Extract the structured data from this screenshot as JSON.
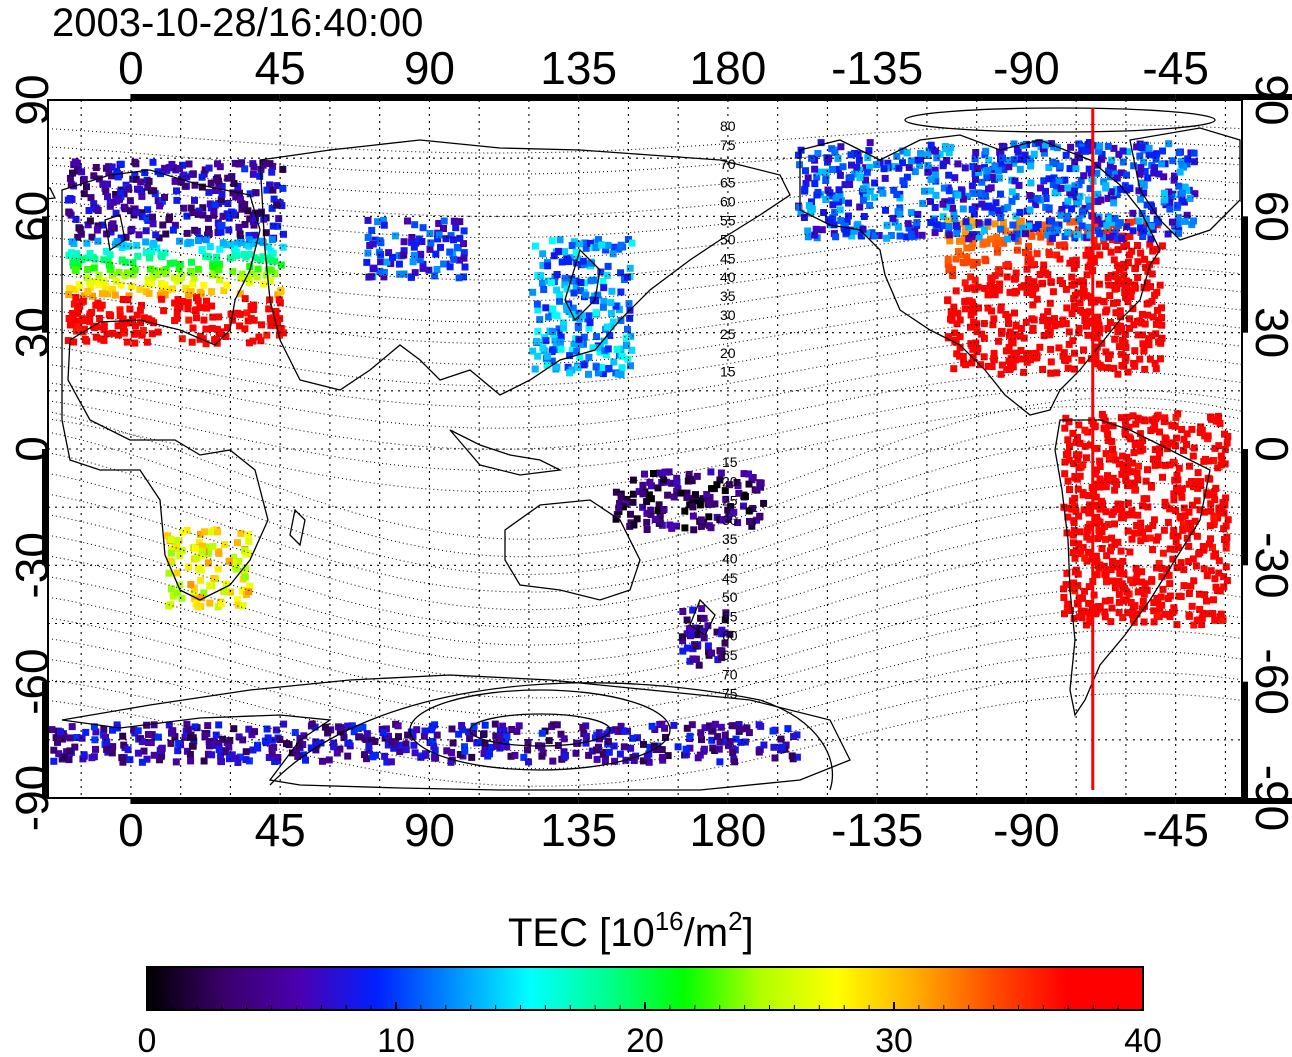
{
  "title": "2003-10-28/16:40:00",
  "colorbar": {
    "title_main": "TEC  [10",
    "title_sup": "16",
    "title_mid": "/m",
    "title_sup2": "2",
    "title_end": "]",
    "min": 0,
    "max": 40,
    "ticks": [
      "0",
      "10",
      "20",
      "30",
      "40"
    ],
    "colormap": [
      "#000000",
      "#3a006a",
      "#4b00b0",
      "#0020ff",
      "#0090ff",
      "#00ffff",
      "#00ff90",
      "#00ff00",
      "#b0ff00",
      "#ffff00",
      "#ffb000",
      "#ff5000",
      "#ff0000",
      "#ff0000"
    ]
  },
  "chart_data": {
    "type": "heatmap",
    "title": "2003-10-28/16:40:00",
    "x_ticks_top": [
      "0",
      "45",
      "90",
      "135",
      "180",
      "-135",
      "-90",
      "-45"
    ],
    "x_ticks_bottom": [
      "0",
      "45",
      "90",
      "135",
      "180",
      "-135",
      "-90",
      "-45"
    ],
    "x_tick_lons": [
      0,
      45,
      90,
      135,
      180,
      225,
      270,
      315
    ],
    "y_ticks_left": [
      "90",
      "60",
      "30",
      "0",
      "-30",
      "-60",
      "-90"
    ],
    "y_ticks_right": [
      "90",
      "60",
      "30",
      "0",
      "-30",
      "-60",
      "-90"
    ],
    "y_tick_lats": [
      90,
      60,
      30,
      0,
      -30,
      -60,
      -90
    ],
    "lon_range": [
      -25,
      335
    ],
    "lat_range": [
      -90,
      90
    ],
    "grid": true,
    "marker_longitude": 290,
    "marker_color": "#ff0000",
    "contour_labels_north": [
      "80",
      "75",
      "70",
      "65",
      "60",
      "55",
      "50",
      "45",
      "40",
      "35",
      "30",
      "25",
      "20",
      "15"
    ],
    "contour_labels_south": [
      "15",
      "20",
      "25",
      "30",
      "35",
      "40",
      "45",
      "50",
      "55",
      "60",
      "65",
      "70",
      "75"
    ],
    "value_unit": "TEC [10^16/m^2]",
    "value_range": [
      0,
      40
    ],
    "regions": [
      {
        "name": "north-america",
        "lon_range": [
          245,
          310
        ],
        "lat_range": [
          20,
          60
        ],
        "tec": 40
      },
      {
        "name": "north-america-north",
        "lon_range": [
          200,
          320
        ],
        "lat_range": [
          55,
          80
        ],
        "tec": 10
      },
      {
        "name": "europe-north",
        "lon_range": [
          -20,
          45
        ],
        "lat_range": [
          55,
          75
        ],
        "tec": 6
      },
      {
        "name": "europe-mid",
        "lon_range": [
          -20,
          45
        ],
        "lat_range": [
          40,
          55
        ],
        "tec": 22
      },
      {
        "name": "europe-south",
        "lon_range": [
          -20,
          45
        ],
        "lat_range": [
          28,
          40
        ],
        "tec": 40
      },
      {
        "name": "south-america",
        "lon_range": [
          280,
          330
        ],
        "lat_range": [
          -45,
          10
        ],
        "tec": 40
      },
      {
        "name": "asia-east",
        "lon_range": [
          120,
          150
        ],
        "lat_range": [
          20,
          55
        ],
        "tec": 12
      },
      {
        "name": "russia",
        "lon_range": [
          70,
          100
        ],
        "lat_range": [
          45,
          60
        ],
        "tec": 9
      },
      {
        "name": "southern-africa",
        "lon_range": [
          10,
          35
        ],
        "lat_range": [
          -40,
          -20
        ],
        "tec": 28
      },
      {
        "name": "new-zealand",
        "lon_range": [
          165,
          180
        ],
        "lat_range": [
          -55,
          -40
        ],
        "tec": 5
      },
      {
        "name": "antarctica",
        "lon_range": [
          -25,
          200
        ],
        "lat_range": [
          -80,
          -70
        ],
        "tec": 6
      },
      {
        "name": "pacific-tropics",
        "lon_range": [
          145,
          190
        ],
        "lat_range": [
          -20,
          -5
        ],
        "tec": 3
      }
    ]
  }
}
